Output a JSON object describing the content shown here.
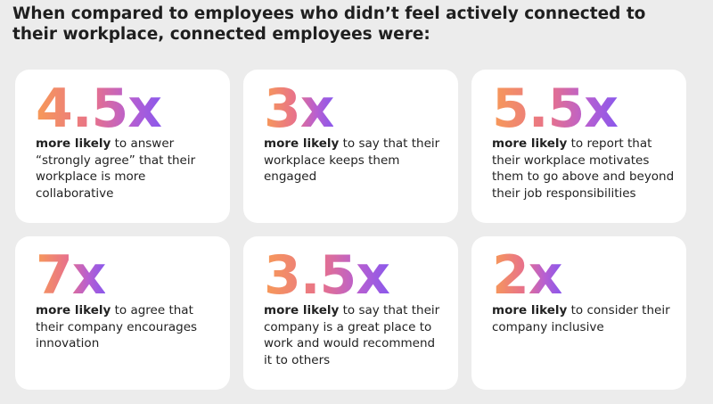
{
  "header": {
    "title": "When compared to employees who didn’t feel actively connected to their workplace, connected employees were:"
  },
  "cards": [
    {
      "stat": "4.5x",
      "emphasis": "more likely",
      "text": " to answer “strongly agree” that their workplace is more collaborative"
    },
    {
      "stat": "3x",
      "emphasis": "more likely",
      "text": " to say that their workplace keeps them engaged"
    },
    {
      "stat": "5.5x",
      "emphasis": "more likely",
      "text": " to report that their workplace motivates them to go above and beyond their job responsibilities"
    },
    {
      "stat": "7x",
      "emphasis": "more likely",
      "text": " to agree that their company encourages innovation"
    },
    {
      "stat": "3.5x",
      "emphasis": "more likely",
      "text": " to say that their company is a great place to work and would recommend it to others"
    },
    {
      "stat": "2x",
      "emphasis": "more likely",
      "text": " to consider their company inclusive"
    }
  ]
}
